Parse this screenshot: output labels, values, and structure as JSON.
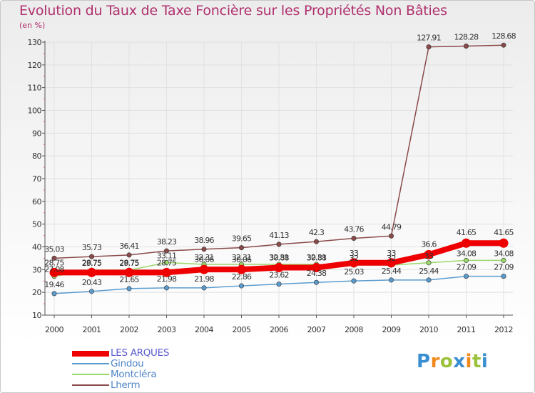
{
  "title": "Evolution du Taux de Taxe Foncière sur les Propriétés Non Bâties",
  "unit": "(en %)",
  "brand": {
    "text": "Proxiti",
    "letter_colors": [
      "#3a8fd0",
      "#f08a1c",
      "#9ac23c",
      "#3a8fd0",
      "#f08a1c",
      "#9ac23c",
      "#3a8fd0"
    ]
  },
  "chart_data": {
    "type": "line",
    "title": "Evolution du Taux de Taxe Foncière sur les Propriétés Non Bâties",
    "xlabel": "",
    "ylabel": "(en %)",
    "ylim": [
      10,
      130
    ],
    "yticks": [
      10,
      20,
      30,
      40,
      50,
      60,
      70,
      80,
      90,
      100,
      110,
      120,
      130
    ],
    "categories": [
      "2000",
      "2001",
      "2002",
      "2003",
      "2004",
      "2005",
      "2006",
      "2007",
      "2008",
      "2009",
      "2010",
      "2011",
      "2012"
    ],
    "series": [
      {
        "name": "LES ARQUES",
        "color": "#ee0000",
        "values": [
          28.75,
          28.75,
          28.75,
          28.75,
          30.06,
          30.06,
          30.88,
          30.88,
          33,
          33,
          36.6,
          41.65,
          41.65
        ],
        "labels": [
          "",
          "",
          "",
          "",
          "",
          "",
          "",
          "",
          "",
          "",
          "36.6",
          "41.65",
          "41.65"
        ]
      },
      {
        "name": "Gindou",
        "color": "#5b9ccf",
        "values": [
          19.46,
          20.43,
          21.65,
          21.98,
          21.98,
          22.86,
          23.62,
          24.38,
          25.03,
          25.44,
          25.44,
          27.09,
          27.09
        ],
        "labels": [
          "19.46",
          "20.43",
          "21.65",
          "21.98",
          "21.98",
          "22.86",
          "23.62",
          "24.38",
          "25.03",
          "25.44",
          "25.44",
          "27.09",
          "27.09"
        ]
      },
      {
        "name": "Montcléra",
        "color": "#9ad86a",
        "values": [
          27.08,
          29.75,
          29.75,
          33.11,
          32.31,
          32.31,
          32.31,
          32.31,
          32,
          32,
          33,
          34.08,
          34.08
        ],
        "labels": [
          "27.08",
          "29.75",
          "29.75",
          "33.11",
          "32.31",
          "32.31",
          "32.31",
          "32.31",
          "32",
          "32",
          "33",
          "34.08",
          "34.08"
        ]
      },
      {
        "name": "Lherm",
        "color": "#8a4a4a",
        "values": [
          35.03,
          35.73,
          36.41,
          38.23,
          38.96,
          39.65,
          41.13,
          42.3,
          43.76,
          44.79,
          127.91,
          128.28,
          128.68
        ],
        "labels": [
          "35.03",
          "35.73",
          "36.41",
          "38.23",
          "38.96",
          "39.65",
          "41.13",
          "42.3",
          "43.76",
          "44.79",
          "127.91",
          "128.28",
          "128.68"
        ]
      }
    ],
    "overlap_labels": [
      {
        "index": 0,
        "text": "28.75"
      },
      {
        "index": 1,
        "text": "28.75"
      },
      {
        "index": 2,
        "text": "28.75"
      },
      {
        "index": 3,
        "text": "28.75"
      },
      {
        "index": 4,
        "text": "30.06"
      },
      {
        "index": 5,
        "text": "30.06"
      },
      {
        "index": 6,
        "text": "30.88"
      },
      {
        "index": 7,
        "text": "30.88"
      },
      {
        "index": 8,
        "text": "33"
      },
      {
        "index": 9,
        "text": "33"
      }
    ],
    "legend": [
      "LES ARQUES",
      "Gindou",
      "Montcléra",
      "Lherm"
    ]
  }
}
